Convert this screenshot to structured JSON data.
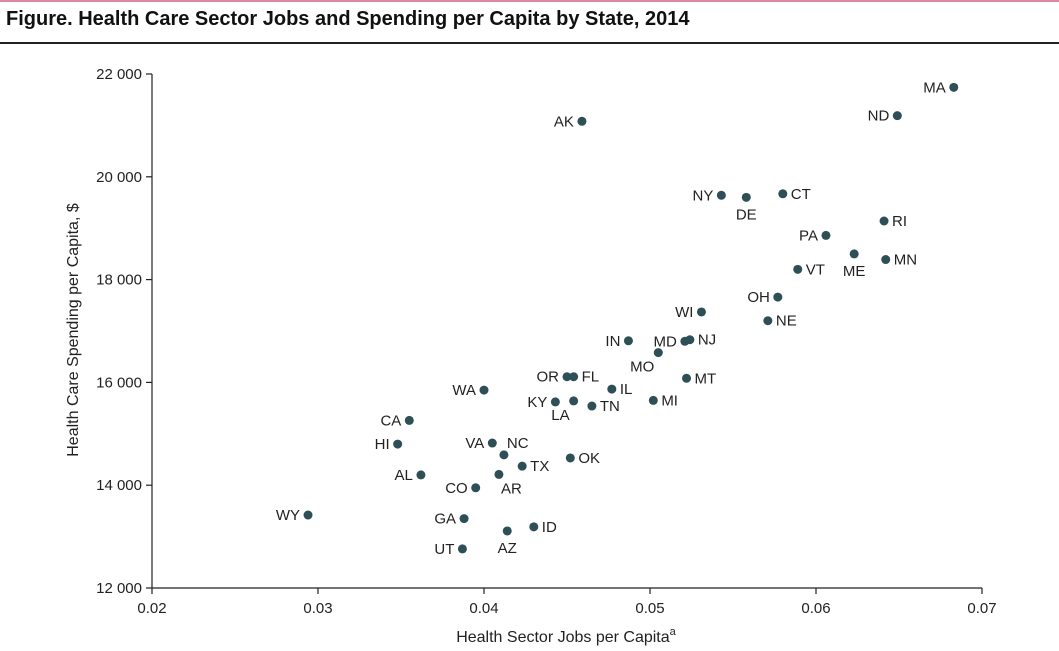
{
  "title": "Figure. Health Care Sector Jobs and Spending per Capita by State, 2014",
  "colors": {
    "point": "#2f4f57",
    "axis": "#222222",
    "accent_rule": "#d98aa0"
  },
  "chart_data": {
    "type": "scatter",
    "xlabel": "Health Sector Jobs per Capita",
    "xlabel_sup": "a",
    "ylabel": "Health Care Spending per Capita, $",
    "xlim": [
      0.02,
      0.07
    ],
    "ylim": [
      12000,
      22000
    ],
    "x_ticks": [
      0.02,
      0.03,
      0.04,
      0.05,
      0.06,
      0.07
    ],
    "x_tick_labels": [
      "0.02",
      "0.03",
      "0.04",
      "0.05",
      "0.06",
      "0.07"
    ],
    "y_ticks": [
      12000,
      14000,
      16000,
      18000,
      20000,
      22000
    ],
    "y_tick_labels": [
      "12 000",
      "14 000",
      "16 000",
      "18 000",
      "20 000",
      "22 000"
    ],
    "grid": false,
    "points": [
      {
        "label": "MA",
        "x": 0.0683,
        "y": 21740,
        "pos": "left"
      },
      {
        "label": "ND",
        "x": 0.0649,
        "y": 21190,
        "pos": "left"
      },
      {
        "label": "AK",
        "x": 0.0459,
        "y": 21080,
        "pos": "left"
      },
      {
        "label": "NY",
        "x": 0.0543,
        "y": 19640,
        "pos": "left"
      },
      {
        "label": "DE",
        "x": 0.0558,
        "y": 19600,
        "pos": "below"
      },
      {
        "label": "CT",
        "x": 0.058,
        "y": 19670,
        "pos": "right"
      },
      {
        "label": "RI",
        "x": 0.0641,
        "y": 19140,
        "pos": "right"
      },
      {
        "label": "PA",
        "x": 0.0606,
        "y": 18860,
        "pos": "left"
      },
      {
        "label": "ME",
        "x": 0.0623,
        "y": 18500,
        "pos": "below"
      },
      {
        "label": "MN",
        "x": 0.0642,
        "y": 18390,
        "pos": "right"
      },
      {
        "label": "VT",
        "x": 0.0589,
        "y": 18200,
        "pos": "right"
      },
      {
        "label": "OH",
        "x": 0.0577,
        "y": 17660,
        "pos": "left"
      },
      {
        "label": "WI",
        "x": 0.0531,
        "y": 17370,
        "pos": "left"
      },
      {
        "label": "NE",
        "x": 0.0571,
        "y": 17200,
        "pos": "right"
      },
      {
        "label": "IN",
        "x": 0.0487,
        "y": 16810,
        "pos": "left"
      },
      {
        "label": "MD",
        "x": 0.0521,
        "y": 16800,
        "pos": "left"
      },
      {
        "label": "NJ",
        "x": 0.0524,
        "y": 16830,
        "pos": "right"
      },
      {
        "label": "MO",
        "x": 0.0505,
        "y": 16580,
        "pos": "below-left"
      },
      {
        "label": "OR",
        "x": 0.045,
        "y": 16110,
        "pos": "left"
      },
      {
        "label": "FL",
        "x": 0.0454,
        "y": 16110,
        "pos": "right"
      },
      {
        "label": "MT",
        "x": 0.0522,
        "y": 16080,
        "pos": "right"
      },
      {
        "label": "WA",
        "x": 0.04,
        "y": 15850,
        "pos": "left"
      },
      {
        "label": "IL",
        "x": 0.0477,
        "y": 15870,
        "pos": "right"
      },
      {
        "label": "KY",
        "x": 0.0443,
        "y": 15620,
        "pos": "left"
      },
      {
        "label": "LA",
        "x": 0.0454,
        "y": 15640,
        "pos": "below-left"
      },
      {
        "label": "TN",
        "x": 0.0465,
        "y": 15540,
        "pos": "right"
      },
      {
        "label": "MI",
        "x": 0.0502,
        "y": 15650,
        "pos": "right"
      },
      {
        "label": "CA",
        "x": 0.0355,
        "y": 15260,
        "pos": "left"
      },
      {
        "label": "VA",
        "x": 0.0405,
        "y": 14820,
        "pos": "left"
      },
      {
        "label": "NC",
        "x": 0.0412,
        "y": 14590,
        "pos": "above-right"
      },
      {
        "label": "HI",
        "x": 0.0348,
        "y": 14800,
        "pos": "left"
      },
      {
        "label": "OK",
        "x": 0.0452,
        "y": 14530,
        "pos": "right"
      },
      {
        "label": "TX",
        "x": 0.0423,
        "y": 14370,
        "pos": "right"
      },
      {
        "label": "AL",
        "x": 0.0362,
        "y": 14200,
        "pos": "left"
      },
      {
        "label": "AR",
        "x": 0.0409,
        "y": 14210,
        "pos": "below-right"
      },
      {
        "label": "CO",
        "x": 0.0395,
        "y": 13950,
        "pos": "left"
      },
      {
        "label": "WY",
        "x": 0.0294,
        "y": 13420,
        "pos": "left"
      },
      {
        "label": "GA",
        "x": 0.0388,
        "y": 13350,
        "pos": "left"
      },
      {
        "label": "ID",
        "x": 0.043,
        "y": 13190,
        "pos": "right"
      },
      {
        "label": "AZ",
        "x": 0.0414,
        "y": 13110,
        "pos": "below"
      },
      {
        "label": "UT",
        "x": 0.0387,
        "y": 12760,
        "pos": "left"
      }
    ]
  }
}
